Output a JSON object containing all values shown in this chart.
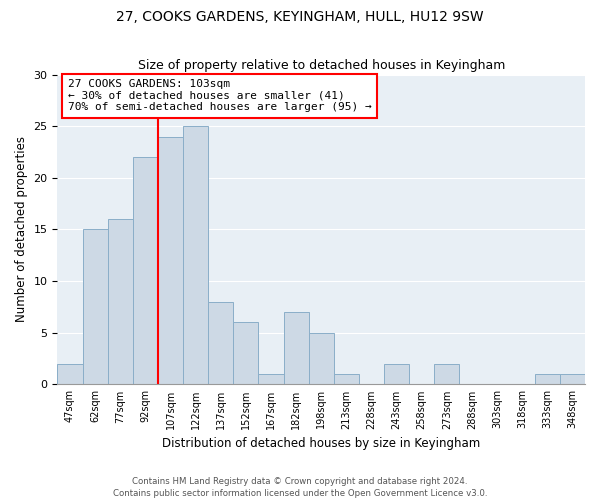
{
  "title": "27, COOKS GARDENS, KEYINGHAM, HULL, HU12 9SW",
  "subtitle": "Size of property relative to detached houses in Keyingham",
  "xlabel": "Distribution of detached houses by size in Keyingham",
  "ylabel": "Number of detached properties",
  "bar_color": "#cdd9e5",
  "bar_edge_color": "#8aaec8",
  "bg_color": "#e8eff5",
  "grid_color": "#ffffff",
  "categories": [
    "47sqm",
    "62sqm",
    "77sqm",
    "92sqm",
    "107sqm",
    "122sqm",
    "137sqm",
    "152sqm",
    "167sqm",
    "182sqm",
    "198sqm",
    "213sqm",
    "228sqm",
    "243sqm",
    "258sqm",
    "273sqm",
    "288sqm",
    "303sqm",
    "318sqm",
    "333sqm",
    "348sqm"
  ],
  "values": [
    2,
    15,
    16,
    22,
    24,
    25,
    8,
    6,
    1,
    7,
    5,
    1,
    0,
    2,
    0,
    2,
    0,
    0,
    0,
    1,
    1
  ],
  "ylim": [
    0,
    30
  ],
  "yticks": [
    0,
    5,
    10,
    15,
    20,
    25,
    30
  ],
  "red_line_x": 3.5,
  "marker_label": "27 COOKS GARDENS: 103sqm",
  "annotation_line1": "← 30% of detached houses are smaller (41)",
  "annotation_line2": "70% of semi-detached houses are larger (95) →",
  "footer1": "Contains HM Land Registry data © Crown copyright and database right 2024.",
  "footer2": "Contains public sector information licensed under the Open Government Licence v3.0."
}
